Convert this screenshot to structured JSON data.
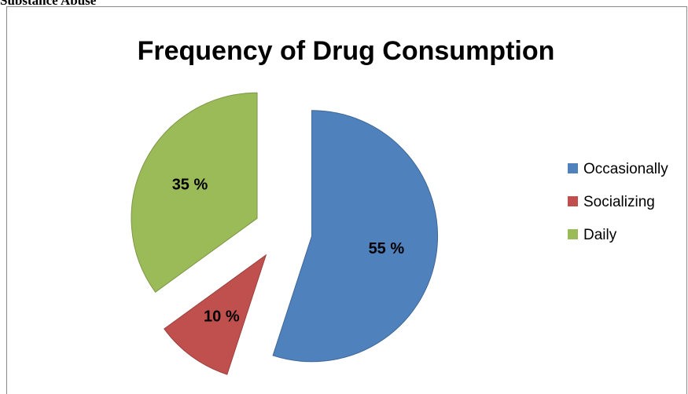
{
  "caption": "Substance Abuse",
  "chart_data": {
    "type": "pie",
    "title": "Frequency of Drug Consumption",
    "categories": [
      "Occasionally",
      "Socializing",
      "Daily"
    ],
    "values": [
      55,
      10,
      35
    ],
    "labels": [
      "55 %",
      "10 %",
      "35 %"
    ],
    "colors": [
      "#4f81bd",
      "#c0504d",
      "#9bbb59"
    ],
    "exploded": true,
    "legend_position": "right"
  }
}
